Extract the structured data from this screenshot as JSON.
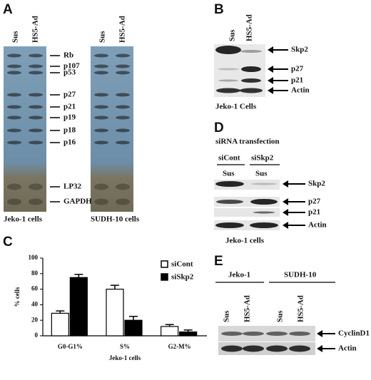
{
  "panel_labels": [
    "A",
    "B",
    "C",
    "D",
    "E"
  ],
  "panel_a": {
    "lanes": [
      "Sus",
      "HS5-Ad",
      "Sus",
      "HS5-Ad"
    ],
    "bands": [
      "Rb",
      "p107",
      "p53",
      "p27",
      "p21",
      "p19",
      "p18",
      "p16",
      "LP32",
      "GAPDH"
    ],
    "captions": [
      "Jeko-1 cells",
      "SUDH-10 cells"
    ]
  },
  "panel_b": {
    "lanes": [
      "Sus",
      "HS5-Ad"
    ],
    "bands": [
      "Skp2",
      "p27",
      "p21",
      "Actin"
    ],
    "caption": "Jeko-1 Cells"
  },
  "panel_d": {
    "title": "siRNA transfection",
    "groups": [
      "siCont",
      "siSkp2"
    ],
    "lanes": [
      "Sus",
      "Sus"
    ],
    "bands": [
      "Skp2",
      "p27",
      "p21",
      "Actin"
    ],
    "caption": "Jeko-1 cells"
  },
  "panel_e": {
    "groups": [
      "Jeko-1",
      "SUDH-10"
    ],
    "lanes": [
      "Sus",
      "HS5-Ad",
      "Sus",
      "HS5-Ad"
    ],
    "bands": [
      "CyclinD1",
      "Actin"
    ]
  },
  "chart_data": {
    "type": "bar",
    "ylabel": "% cells",
    "xlabel": "Jeko-1 cells",
    "categories": [
      "G0-G1%",
      "S%",
      "G2-M%"
    ],
    "series": [
      {
        "name": "siCont",
        "color": "#ffffff",
        "values": [
          29,
          60,
          12
        ],
        "errors": [
          3,
          5,
          2.5
        ]
      },
      {
        "name": "siSkp2",
        "color": "#000000",
        "values": [
          75,
          20,
          5
        ],
        "errors": [
          4,
          5,
          2.5
        ]
      }
    ],
    "ylim": [
      0,
      100
    ],
    "yticks": [
      0,
      20,
      40,
      60,
      80,
      100
    ]
  }
}
